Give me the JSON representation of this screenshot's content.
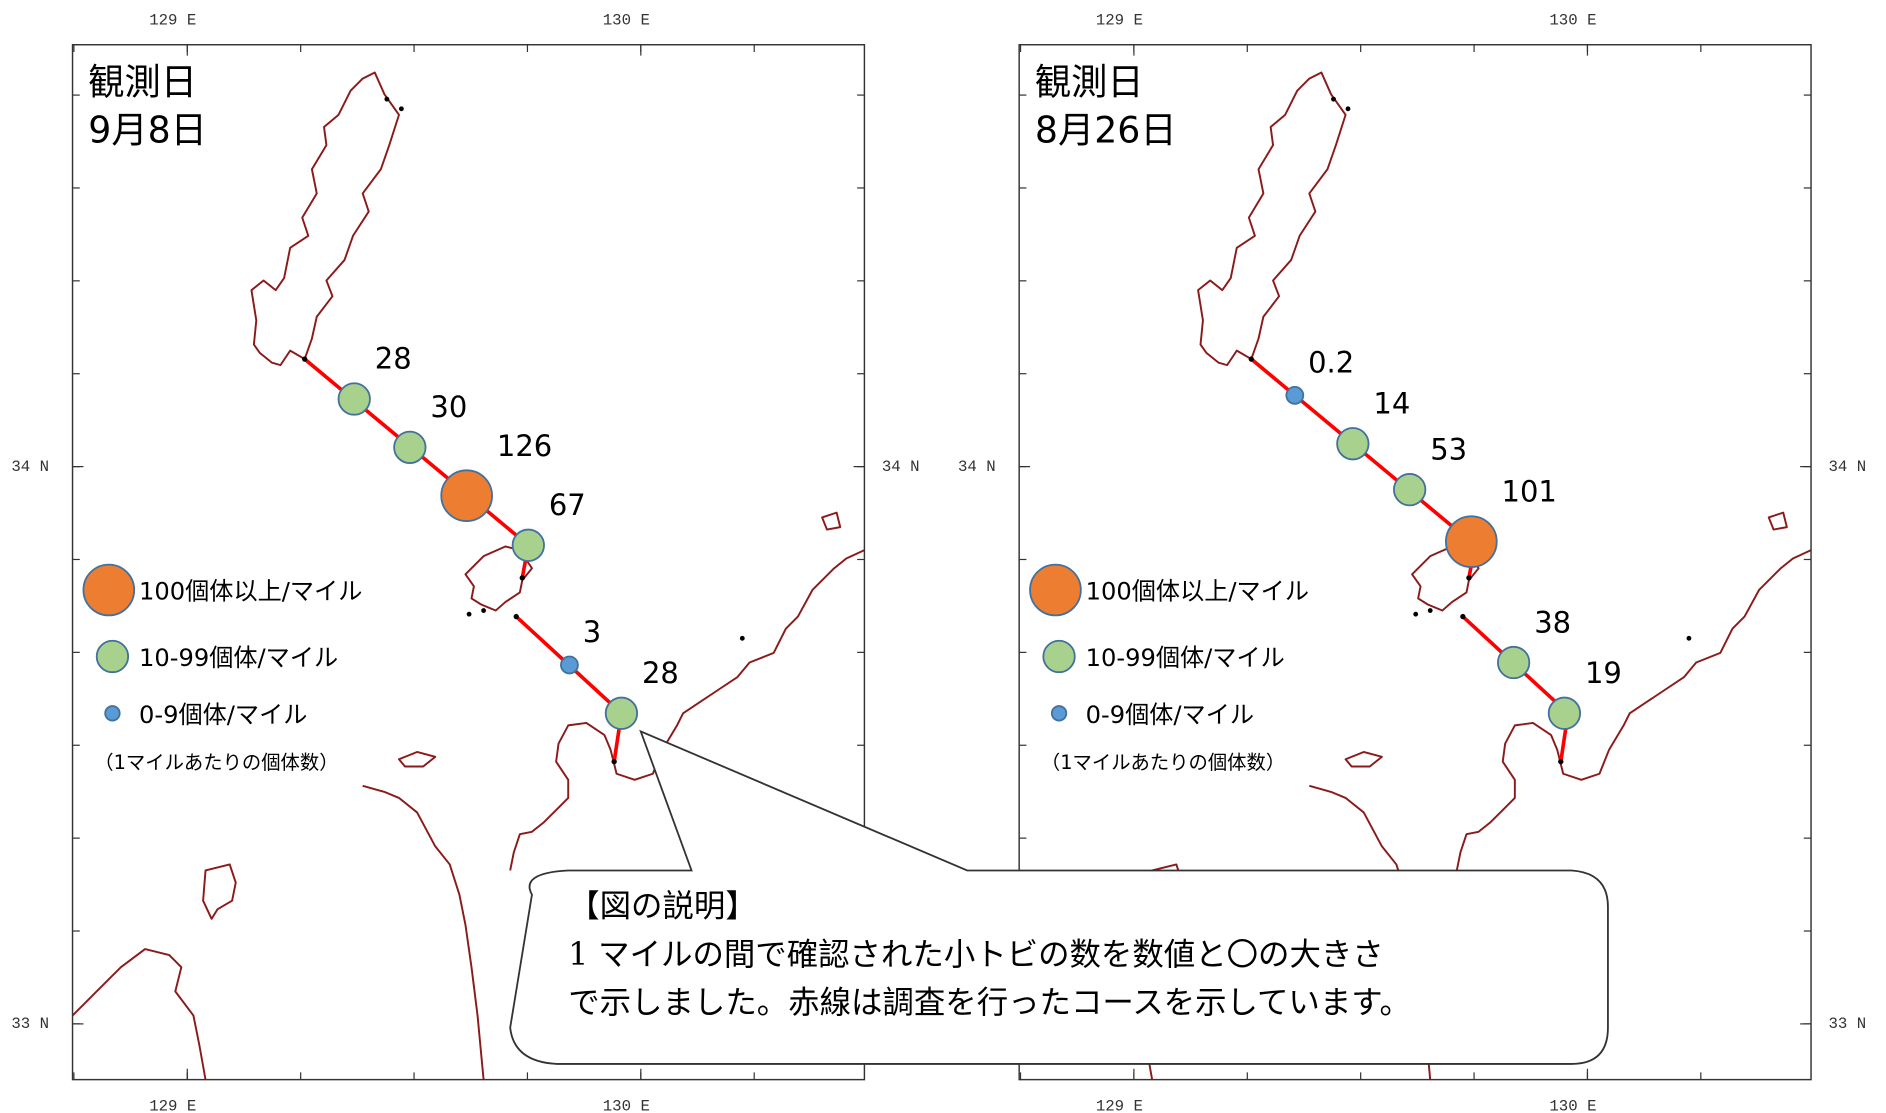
{
  "map": {
    "xlim": [
      128.747,
      130.493
    ],
    "ylim": [
      32.9,
      34.757
    ],
    "xticks": [
      {
        "value": 129,
        "label": "129 E"
      },
      {
        "value": 130,
        "label": "130 E"
      }
    ],
    "yticks": [
      {
        "value": 33,
        "label": "33 N"
      },
      {
        "value": 34,
        "label": "34 N"
      }
    ]
  },
  "legend": [
    {
      "label": "100個体以上/マイル",
      "color": "#ed7d31",
      "min": 100
    },
    {
      "label": "10-99個体/マイル",
      "color": "#a9d18e",
      "min": 10
    },
    {
      "label": "0-9個体/マイル",
      "color": "#5b9bd5",
      "min": 0
    }
  ],
  "legend_note": "（1マイルあたりの個体数）",
  "panels": [
    {
      "title": "観測日",
      "date": "9月8日",
      "counts": [
        28,
        30,
        126,
        67,
        3,
        28
      ]
    },
    {
      "title": "観測日",
      "date": "8月26日",
      "counts": [
        0.2,
        14,
        53,
        101,
        38,
        19
      ]
    }
  ],
  "callout": {
    "heading": "【図の説明】",
    "lines": [
      "1 マイルの間で確認された小トビの数を数値と〇の大きさ",
      "で示しました。赤線は調査を行ったコースを示しています。"
    ]
  }
}
